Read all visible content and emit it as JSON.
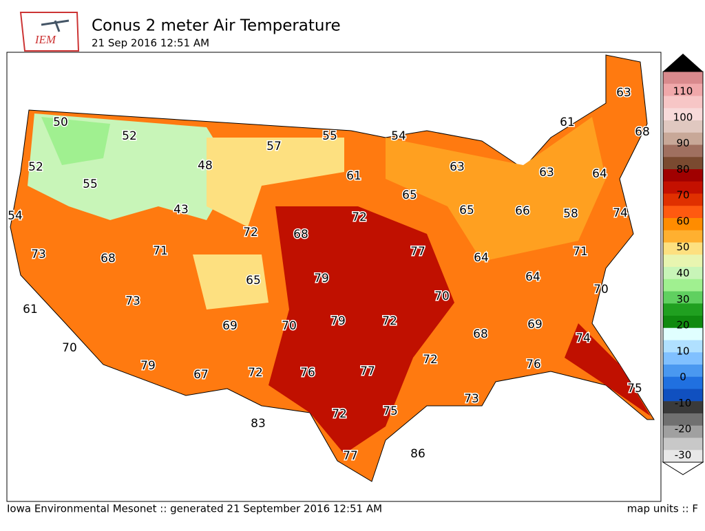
{
  "header": {
    "logo": "IEM",
    "title": "Conus 2 meter Air Temperature",
    "subtitle": "21 Sep 2016 12:51 AM"
  },
  "map": {
    "stations": [
      50,
      52,
      52,
      55,
      48,
      43,
      54,
      73,
      68,
      71,
      72,
      68,
      65,
      79,
      61,
      73,
      69,
      70,
      79,
      72,
      70,
      79,
      67,
      72,
      76,
      77,
      83,
      72,
      75,
      77,
      86,
      57,
      55,
      54,
      61,
      65,
      72,
      77,
      63,
      65,
      66,
      63,
      64,
      58,
      74,
      61,
      63,
      68,
      71,
      64,
      64,
      70,
      70,
      68,
      69,
      72,
      74,
      76,
      73,
      75
    ]
  },
  "colorbar": {
    "ticks": [
      110,
      100,
      90,
      80,
      70,
      60,
      50,
      40,
      30,
      20,
      10,
      0,
      -10,
      -20,
      -30
    ],
    "colors": [
      "#d98a8d",
      "#f0a8aa",
      "#f7c6c6",
      "#f8dada",
      "#e0c8c0",
      "#c8a898",
      "#a07060",
      "#7a4a30",
      "#a00000",
      "#c41000",
      "#e03000",
      "#ff5a10",
      "#ff8c00",
      "#ffb030",
      "#fde080",
      "#e8f5b0",
      "#c8f5b8",
      "#a0f090",
      "#60d060",
      "#20a020",
      "#108a10",
      "#e0ffff",
      "#b0e0ff",
      "#80c0ff",
      "#4a98f0",
      "#2070e0",
      "#1050c0",
      "#3a3a3a",
      "#707070",
      "#a0a0a0",
      "#c8c8c8",
      "#e8e8e8"
    ]
  },
  "footer": {
    "left": "Iowa Environmental Mesonet :: generated 21 September 2016 12:51 AM",
    "right": "map units :: F"
  }
}
